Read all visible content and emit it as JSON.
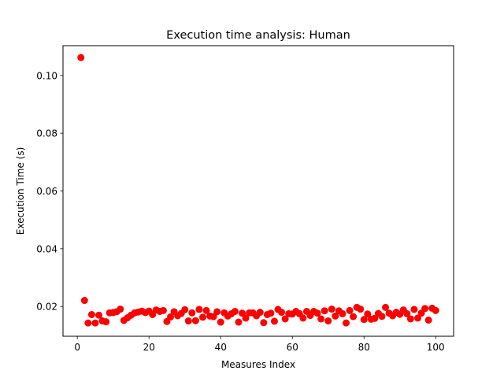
{
  "chart_data": {
    "type": "scatter",
    "title": "Execution time analysis: Human",
    "xlabel": "Measures Index",
    "ylabel": "Execution Time (s)",
    "xlim": [
      -4,
      105
    ],
    "ylim": [
      0.0097,
      0.1103
    ],
    "xticks": [
      0,
      20,
      40,
      60,
      80,
      100
    ],
    "yticks": [
      0.02,
      0.04,
      0.06,
      0.08,
      0.1
    ],
    "xtick_labels": [
      "0",
      "20",
      "40",
      "60",
      "80",
      "100"
    ],
    "ytick_labels": [
      "0.02",
      "0.04",
      "0.06",
      "0.08",
      "0.10"
    ],
    "grid": false,
    "marker_color": "#ff0000",
    "series": [
      {
        "x": [
          1,
          2,
          3,
          4,
          5,
          6,
          7,
          8,
          9,
          10,
          11,
          12,
          13,
          14,
          15,
          16,
          17,
          18,
          19,
          20,
          21,
          22,
          23,
          24,
          25,
          26,
          27,
          28,
          29,
          30,
          31,
          32,
          33,
          34,
          35,
          36,
          37,
          38,
          39,
          40,
          41,
          42,
          43,
          44,
          45,
          46,
          47,
          48,
          49,
          50,
          51,
          52,
          53,
          54,
          55,
          56,
          57,
          58,
          59,
          60,
          61,
          62,
          63,
          64,
          65,
          66,
          67,
          68,
          69,
          70,
          71,
          72,
          73,
          74,
          75,
          76,
          77,
          78,
          79,
          80,
          81,
          82,
          83,
          84,
          85,
          86,
          87,
          88,
          89,
          90,
          91,
          92,
          93,
          94,
          95,
          96,
          97,
          98,
          99,
          100
        ],
        "y": [
          0.1062,
          0.0221,
          0.0143,
          0.0172,
          0.0143,
          0.017,
          0.015,
          0.0147,
          0.0178,
          0.0179,
          0.0182,
          0.0191,
          0.0152,
          0.0161,
          0.017,
          0.0178,
          0.0181,
          0.0184,
          0.0179,
          0.0184,
          0.0172,
          0.0188,
          0.0183,
          0.0186,
          0.0148,
          0.0164,
          0.0182,
          0.0168,
          0.0176,
          0.0189,
          0.015,
          0.0178,
          0.0151,
          0.019,
          0.0163,
          0.0186,
          0.0167,
          0.0165,
          0.0182,
          0.0146,
          0.0178,
          0.0167,
          0.0175,
          0.0183,
          0.0146,
          0.0177,
          0.016,
          0.0178,
          0.0178,
          0.0168,
          0.018,
          0.0144,
          0.0172,
          0.0177,
          0.0149,
          0.019,
          0.018,
          0.0157,
          0.0175,
          0.0174,
          0.0183,
          0.0175,
          0.016,
          0.0183,
          0.0169,
          0.0183,
          0.0177,
          0.0157,
          0.0185,
          0.015,
          0.0191,
          0.0167,
          0.0185,
          0.0175,
          0.0143,
          0.0186,
          0.0165,
          0.0197,
          0.0191,
          0.0155,
          0.0174,
          0.0156,
          0.0159,
          0.0176,
          0.0166,
          0.0197,
          0.0177,
          0.0168,
          0.018,
          0.0173,
          0.0188,
          0.0175,
          0.0157,
          0.019,
          0.016,
          0.0177,
          0.0193,
          0.0153,
          0.0194,
          0.0186
        ]
      }
    ]
  }
}
